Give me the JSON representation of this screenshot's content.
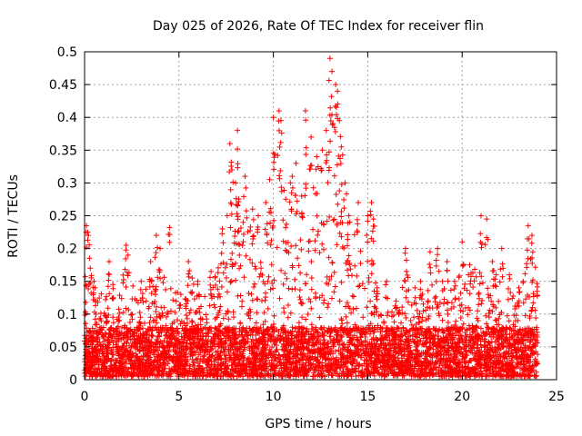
{
  "chart_data": {
    "type": "scatter",
    "title": "Day 025 of 2026, Rate Of TEC Index for receiver flin",
    "xlabel": "GPS time / hours",
    "ylabel": "ROTI / TECUs",
    "xlim": [
      0,
      25
    ],
    "ylim": [
      0,
      0.5
    ],
    "x_ticks": [
      "0",
      "5",
      "10",
      "15",
      "20",
      "25"
    ],
    "y_ticks": [
      "0",
      "0.05",
      "0.1",
      "0.15",
      "0.2",
      "0.25",
      "0.3",
      "0.35",
      "0.4",
      "0.45",
      "0.5"
    ],
    "grid": true,
    "legend": "none",
    "marker": "+",
    "color": "#ff0000",
    "series": [
      {
        "x": [
          0.1,
          0.2,
          0.3,
          0.5,
          1.3,
          1.5,
          2.2,
          2.3,
          3.0,
          3.5,
          3.8,
          4.0,
          4.5,
          5.1,
          5.5,
          5.7,
          6.0,
          6.7,
          7.3,
          7.7,
          7.8,
          8.0,
          8.1,
          8.4,
          8.5,
          8.9,
          9.2,
          9.6,
          9.8,
          10.0,
          10.3,
          10.4,
          10.9,
          11.0,
          11.2,
          11.5,
          11.7,
          12.0,
          12.3,
          12.6,
          12.8,
          13.0,
          13.1,
          13.3,
          13.4,
          13.5,
          13.6,
          13.8,
          14.0,
          14.5,
          15.0,
          15.2,
          15.3,
          15.5,
          16.0,
          16.5,
          17.0,
          17.5,
          17.8,
          18.3,
          18.7,
          19.2,
          19.6,
          20.0,
          20.4,
          21.0,
          21.3,
          21.6,
          21.8,
          22.1,
          22.5,
          23.0,
          23.5,
          23.7
        ],
        "y": [
          0.235,
          0.22,
          0.17,
          0.15,
          0.18,
          0.145,
          0.205,
          0.19,
          0.15,
          0.18,
          0.22,
          0.2,
          0.232,
          0.13,
          0.18,
          0.155,
          0.15,
          0.165,
          0.23,
          0.36,
          0.32,
          0.3,
          0.38,
          0.24,
          0.31,
          0.26,
          0.25,
          0.27,
          0.305,
          0.4,
          0.41,
          0.395,
          0.3,
          0.31,
          0.33,
          0.28,
          0.41,
          0.37,
          0.34,
          0.35,
          0.38,
          0.49,
          0.47,
          0.45,
          0.44,
          0.395,
          0.355,
          0.3,
          0.25,
          0.27,
          0.25,
          0.27,
          0.245,
          0.14,
          0.15,
          0.12,
          0.2,
          0.14,
          0.15,
          0.195,
          0.2,
          0.18,
          0.15,
          0.21,
          0.175,
          0.25,
          0.245,
          0.18,
          0.16,
          0.2,
          0.16,
          0.14,
          0.235,
          0.22
        ],
        "baseline_min": 0.005,
        "baseline_max": 0.08,
        "density": "dense, continuous over 0–24 h"
      }
    ]
  }
}
